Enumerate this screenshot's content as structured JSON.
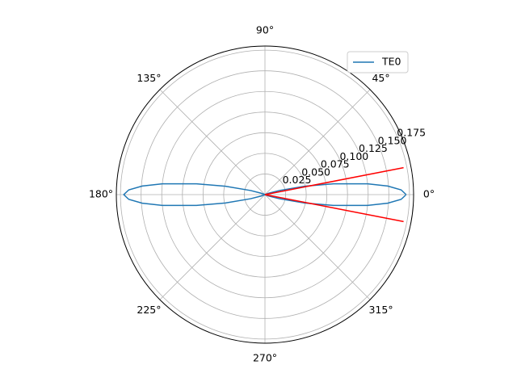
{
  "chart_data": {
    "type": "polar",
    "rlim": [
      0,
      0.18
    ],
    "rticks": [
      0.025,
      {
        "value": 0.05,
        "label": "0.050"
      },
      0.075,
      {
        "value": 0.1,
        "label": "0.100"
      },
      0.125,
      {
        "value": 0.15,
        "label": "0.150"
      },
      0.175
    ],
    "thetaticks": [
      {
        "value": 0,
        "label": "0°"
      },
      {
        "value": 45,
        "label": "45°"
      },
      {
        "value": 90,
        "label": "90°"
      },
      {
        "value": 135,
        "label": "135°"
      },
      {
        "value": 180,
        "label": "180°"
      },
      {
        "value": 225,
        "label": "225°"
      },
      {
        "value": 270,
        "label": "270°"
      },
      {
        "value": 315,
        "label": "315°"
      }
    ],
    "grid": true,
    "legend": "upper right",
    "series": [
      {
        "name": "TE0",
        "color": "#1f77b4",
        "theta": [
          0,
          2,
          4,
          6,
          9,
          12,
          16,
          20,
          24,
          90,
          156,
          160,
          164,
          168,
          171,
          174,
          176,
          178,
          180,
          182,
          184,
          186,
          189,
          192,
          196,
          200,
          204,
          270,
          336,
          340,
          344,
          348,
          351,
          354,
          356,
          358,
          360
        ],
        "r": [
          0.171,
          0.165,
          0.149,
          0.125,
          0.084,
          0.049,
          0.018,
          0.005,
          0.001,
          0,
          0.001,
          0.005,
          0.018,
          0.049,
          0.084,
          0.125,
          0.149,
          0.165,
          0.171,
          0.165,
          0.149,
          0.125,
          0.084,
          0.049,
          0.018,
          0.005,
          0.001,
          0,
          0.001,
          0.005,
          0.018,
          0.049,
          0.084,
          0.125,
          0.149,
          0.165,
          0.171
        ]
      },
      {
        "color": "#ff0000",
        "theta": [
          11,
          0,
          -11
        ],
        "r": [
          0.171,
          0,
          0.171
        ]
      }
    ]
  }
}
